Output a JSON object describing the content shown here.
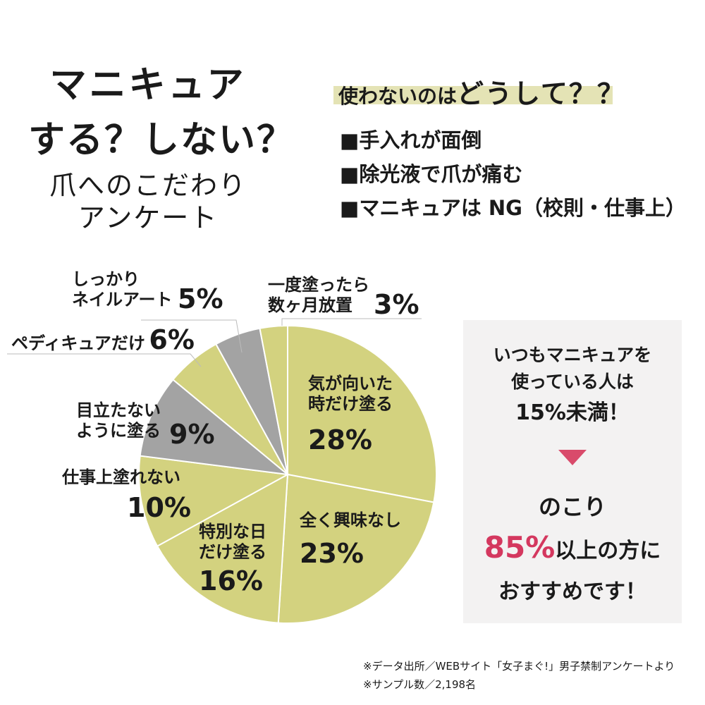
{
  "title": {
    "line1": "マニキュア",
    "line2": "する？しない？",
    "sub1": "爪へのこだわり",
    "sub2": "アンケート"
  },
  "reasons": {
    "heading_a": "使わないのは",
    "heading_b": "どうして？？",
    "items": [
      "■手入れが面倒",
      "■除光液で爪が痛む",
      "■マニキュアは NG（校則・仕事上）"
    ]
  },
  "chart_data": {
    "type": "pie",
    "slices": [
      {
        "label": "気が向いた時だけ塗る",
        "value": 28,
        "color": "#d3d27f"
      },
      {
        "label": "全く興味なし",
        "value": 23,
        "color": "#d3d27f"
      },
      {
        "label": "特別な日だけ塗る",
        "value": 16,
        "color": "#d3d27f"
      },
      {
        "label": "仕事上塗れない",
        "value": 10,
        "color": "#d3d27f"
      },
      {
        "label": "目立たないように塗る",
        "value": 9,
        "color": "#a3a3a3"
      },
      {
        "label": "ペディキュアだけ",
        "value": 6,
        "color": "#d3d27f"
      },
      {
        "label": "しっかりネイルアート",
        "value": 5,
        "color": "#a3a3a3"
      },
      {
        "label": "一度塗ったら数ヶ月放置",
        "value": 3,
        "color": "#d3d27f"
      }
    ]
  },
  "labels": {
    "s0": {
      "t1": "気が向いた",
      "t2": "時だけ塗る",
      "p": "28%"
    },
    "s1": {
      "t1": "全く興味なし",
      "p": "23%"
    },
    "s2": {
      "t1": "特別な日",
      "t2": "だけ塗る",
      "p": "16%"
    },
    "s3": {
      "t1": "仕事上塗れない",
      "p": "10%"
    },
    "s4": {
      "t1": "目立たない",
      "t2": "ように塗る",
      "p": "9%"
    },
    "s5": {
      "t1": "ペディキュアだけ",
      "p": "6%"
    },
    "s6": {
      "t1": "しっかり",
      "t2": "ネイルアート",
      "p": "5%"
    },
    "s7": {
      "t1": "一度塗ったら",
      "t2": "数ヶ月放置",
      "p": "3%"
    }
  },
  "infobox": {
    "line1": "いつもマニキュアを",
    "line2": "使っている人は",
    "line3": "15%未満！",
    "line4": "のこり",
    "accent": "85%",
    "line5_rest": "以上の方に",
    "line6": "おすすめです！"
  },
  "notes": {
    "source": "※データ出所／WEBサイト「女子まぐ!」男子禁制アンケートより",
    "sample": "※サンプル数／2,198名"
  }
}
